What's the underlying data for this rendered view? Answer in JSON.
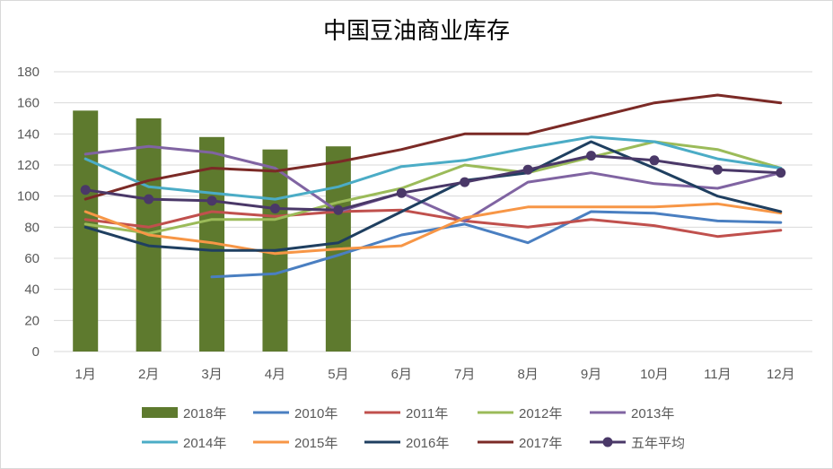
{
  "chart_data": {
    "type": "bar",
    "title": "中国豆油商业库存",
    "xlabel": "",
    "ylabel": "",
    "ylim": [
      0,
      180
    ],
    "ytick_step": 20,
    "grid": true,
    "legend_position": "bottom",
    "categories": [
      "1月",
      "2月",
      "3月",
      "4月",
      "5月",
      "6月",
      "7月",
      "8月",
      "9月",
      "10月",
      "11月",
      "12月"
    ],
    "bar_series": {
      "name": "2018年",
      "color": "#5e7a2e",
      "values": [
        155,
        150,
        138,
        130,
        132,
        null,
        null,
        null,
        null,
        null,
        null,
        null
      ]
    },
    "line_series": [
      {
        "name": "2010年",
        "color": "#4a7fc1",
        "values": [
          null,
          null,
          48,
          50,
          62,
          75,
          82,
          70,
          90,
          89,
          84,
          83
        ]
      },
      {
        "name": "2011年",
        "color": "#c0504d",
        "values": [
          85,
          80,
          90,
          87,
          90,
          91,
          84,
          80,
          85,
          81,
          74,
          78
        ]
      },
      {
        "name": "2012年",
        "color": "#9bbb59",
        "values": [
          82,
          76,
          85,
          85,
          96,
          105,
          120,
          115,
          125,
          135,
          130,
          118
        ]
      },
      {
        "name": "2013年",
        "color": "#8064a2",
        "values": [
          127,
          132,
          128,
          118,
          90,
          102,
          84,
          109,
          115,
          108,
          105,
          115
        ]
      },
      {
        "name": "2014年",
        "color": "#4bacc6",
        "values": [
          124,
          106,
          102,
          98,
          106,
          119,
          123,
          131,
          138,
          135,
          124,
          118
        ]
      },
      {
        "name": "2015年",
        "color": "#f79646",
        "values": [
          90,
          75,
          70,
          63,
          66,
          68,
          86,
          93,
          93,
          93,
          95,
          89
        ]
      },
      {
        "name": "2016年",
        "color": "#1f3f60",
        "values": [
          80,
          68,
          65,
          65,
          70,
          90,
          110,
          115,
          135,
          118,
          100,
          90
        ]
      },
      {
        "name": "2017年",
        "color": "#7b2a26",
        "values": [
          98,
          110,
          118,
          116,
          122,
          130,
          140,
          140,
          150,
          160,
          165,
          160
        ]
      },
      {
        "name": "五年平均",
        "color": "#4a3868",
        "marker": "circle",
        "values": [
          104,
          98,
          97,
          92,
          91,
          102,
          109,
          117,
          126,
          123,
          117,
          115
        ]
      }
    ]
  }
}
